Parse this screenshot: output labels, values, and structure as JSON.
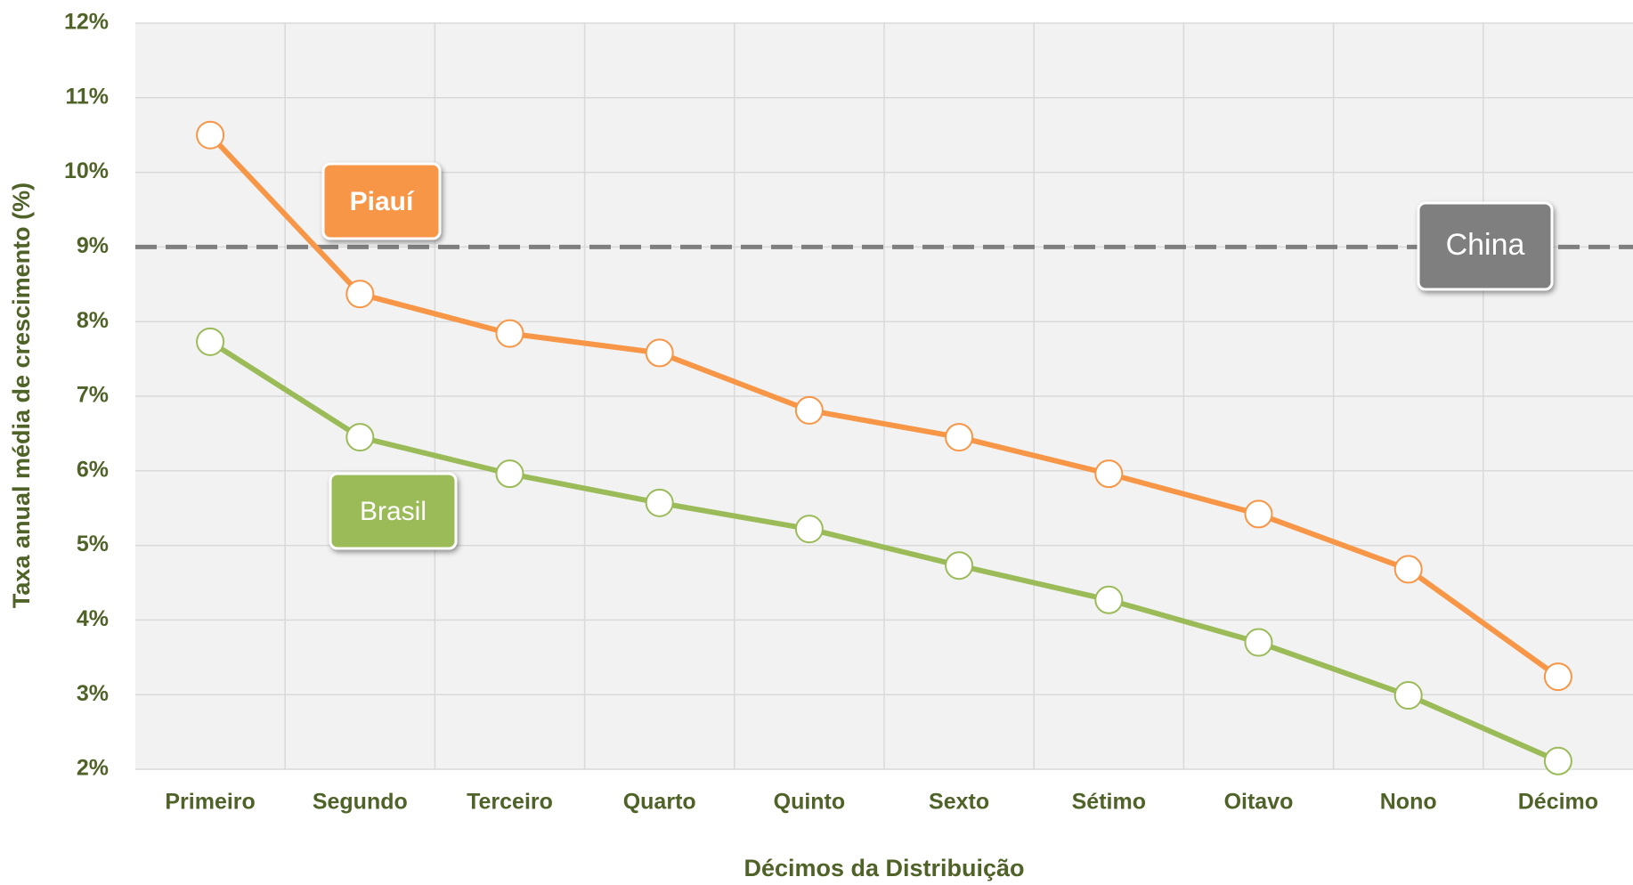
{
  "chart_data": {
    "type": "line",
    "x_label": "Décimos da Distribuição",
    "y_label": "Taxa anual média de crescimento (%)",
    "categories": [
      "Primeiro",
      "Segundo",
      "Terceiro",
      "Quarto",
      "Quinto",
      "Sexto",
      "Sétimo",
      "Oitavo",
      "Nono",
      "Décimo"
    ],
    "series": [
      {
        "name": "Piauí",
        "color": "#f79646",
        "values": [
          10.5,
          8.37,
          7.84,
          7.58,
          6.81,
          6.45,
          5.96,
          5.42,
          4.68,
          3.24
        ]
      },
      {
        "name": "Brasil",
        "color": "#9bbb59",
        "values": [
          7.73,
          6.45,
          5.96,
          5.57,
          5.22,
          4.73,
          4.27,
          3.7,
          2.99,
          2.11
        ]
      }
    ],
    "reference_lines": [
      {
        "name": "China",
        "value": 9,
        "color": "#7f7f7f"
      }
    ],
    "ylim": [
      2,
      12
    ],
    "yticks": [
      {
        "value": 2,
        "label": "2%"
      },
      {
        "value": 3,
        "label": "3%"
      },
      {
        "value": 4,
        "label": "4%"
      },
      {
        "value": 5,
        "label": "5%"
      },
      {
        "value": 6,
        "label": "6%"
      },
      {
        "value": 7,
        "label": "7%"
      },
      {
        "value": 8,
        "label": "8%"
      },
      {
        "value": 9,
        "label": "9%"
      },
      {
        "value": 10,
        "label": "10%"
      },
      {
        "value": 11,
        "label": "11%"
      },
      {
        "value": 12,
        "label": "12%"
      }
    ],
    "grid": true
  }
}
